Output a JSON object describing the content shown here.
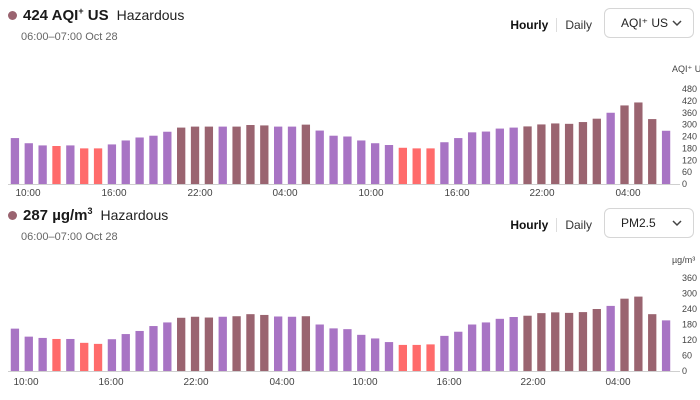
{
  "colors": {
    "moderate": "#ff6b6b",
    "unhealthy": "#a874c4",
    "hazardous": "#9a6470",
    "axis": "#cfcfcf"
  },
  "panels": [
    {
      "value": "424",
      "unit_main": "AQI",
      "unit_sup": "+",
      "unit_tail": " US",
      "status": "Hazardous",
      "time": "06:00–07:00 Oct 28",
      "tab_hourly": "Hourly",
      "tab_daily": "Daily",
      "select_value": "AQI⁺ US"
    },
    {
      "value": "287",
      "unit_main": "µg/m",
      "unit_sup": "3",
      "unit_tail": "",
      "status": "Hazardous",
      "time": "06:00–07:00 Oct 28",
      "tab_hourly": "Hourly",
      "tab_daily": "Daily",
      "select_value": "PM2.5"
    }
  ],
  "chart_data": [
    {
      "type": "bar",
      "ylabel": "AQI⁺ US",
      "ylim": [
        0,
        480
      ],
      "yticks": [
        "480",
        "420",
        "360",
        "300",
        "240",
        "180",
        "120",
        "60",
        "0"
      ],
      "xticks": [
        "10:00",
        "16:00",
        "22:00",
        "04:00",
        "10:00",
        "16:00",
        "22:00",
        "04:00"
      ],
      "values": [
        232,
        206,
        195,
        192,
        195,
        180,
        180,
        200,
        220,
        235,
        244,
        264,
        285,
        290,
        290,
        290,
        290,
        298,
        296,
        290,
        290,
        300,
        270,
        244,
        240,
        220,
        206,
        197,
        183,
        180,
        180,
        211,
        232,
        261,
        265,
        280,
        285,
        291,
        301,
        306,
        304,
        313,
        330,
        360,
        397,
        412,
        328,
        269
      ],
      "levels": [
        "unhealthy",
        "unhealthy",
        "unhealthy",
        "moderate",
        "unhealthy",
        "moderate",
        "moderate",
        "unhealthy",
        "unhealthy",
        "unhealthy",
        "unhealthy",
        "unhealthy",
        "hazardous",
        "hazardous",
        "hazardous",
        "unhealthy",
        "hazardous",
        "hazardous",
        "hazardous",
        "unhealthy",
        "unhealthy",
        "hazardous",
        "unhealthy",
        "unhealthy",
        "unhealthy",
        "unhealthy",
        "unhealthy",
        "unhealthy",
        "moderate",
        "moderate",
        "moderate",
        "unhealthy",
        "unhealthy",
        "unhealthy",
        "unhealthy",
        "unhealthy",
        "unhealthy",
        "hazardous",
        "hazardous",
        "hazardous",
        "hazardous",
        "hazardous",
        "hazardous",
        "unhealthy",
        "hazardous",
        "hazardous",
        "hazardous",
        "unhealthy"
      ]
    },
    {
      "type": "bar",
      "ylabel": "µg/m³",
      "ylim": [
        0,
        360
      ],
      "yticks": [
        "360",
        "300",
        "240",
        "180",
        "120",
        "60",
        "0"
      ],
      "xticks": [
        "10:00",
        "16:00",
        "22:00",
        "04:00",
        "10:00",
        "16:00",
        "22:00",
        "04:00"
      ],
      "values": [
        164,
        133,
        128,
        124,
        124,
        109,
        105,
        123,
        143,
        155,
        174,
        188,
        206,
        210,
        207,
        210,
        212,
        220,
        217,
        211,
        210,
        212,
        180,
        165,
        162,
        140,
        126,
        112,
        101,
        101,
        103,
        136,
        152,
        180,
        188,
        202,
        209,
        214,
        224,
        227,
        225,
        228,
        240,
        252,
        280,
        288,
        220,
        196
      ],
      "levels": [
        "unhealthy",
        "unhealthy",
        "unhealthy",
        "moderate",
        "unhealthy",
        "moderate",
        "moderate",
        "unhealthy",
        "unhealthy",
        "unhealthy",
        "unhealthy",
        "unhealthy",
        "hazardous",
        "hazardous",
        "hazardous",
        "unhealthy",
        "hazardous",
        "hazardous",
        "hazardous",
        "unhealthy",
        "unhealthy",
        "hazardous",
        "unhealthy",
        "unhealthy",
        "unhealthy",
        "unhealthy",
        "unhealthy",
        "unhealthy",
        "moderate",
        "moderate",
        "moderate",
        "unhealthy",
        "unhealthy",
        "unhealthy",
        "unhealthy",
        "unhealthy",
        "unhealthy",
        "hazardous",
        "hazardous",
        "hazardous",
        "hazardous",
        "hazardous",
        "hazardous",
        "unhealthy",
        "hazardous",
        "hazardous",
        "hazardous",
        "unhealthy"
      ]
    }
  ]
}
